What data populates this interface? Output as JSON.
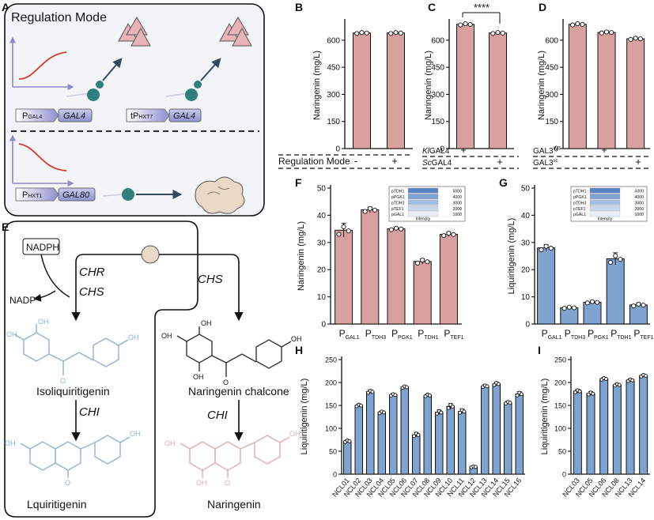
{
  "panels": {
    "A": {
      "letter": "A",
      "title": "Regulation Mode",
      "promoter1_main": "P",
      "promoter1_sub": "GAL4",
      "gene1": "GAL4",
      "promoter2_main": "tP",
      "promoter2_sub": "HXT7",
      "gene2": "GAL4",
      "promoter3_main": "P",
      "promoter3_sub": "HXT1",
      "gene3": "GAL80"
    },
    "E": {
      "letter": "E",
      "cofactor": "NADPH",
      "cofactor_out": "NADP⁺",
      "enzyme_chr": "CHR",
      "enzyme_chs_left": "CHS",
      "enzyme_chs_right": "CHS",
      "enzyme_chi_left": "CHI",
      "enzyme_chi_right": "CHI",
      "intermediate_left": "Isoliquiritigenin",
      "intermediate_right": "Naringenin chalcone",
      "product_left": "Lquiritigenin",
      "product_right": "Naringenin",
      "oh": "OH",
      "o": "O"
    },
    "B": {
      "letter": "B",
      "condition_label": "Regulation Mode",
      "marks": [
        "-",
        "+"
      ]
    },
    "C": {
      "letter": "C",
      "significance": "****",
      "row1_prefix": "Kl",
      "row1_suffix": "GAL4",
      "row2_prefix": "Sc",
      "row2_suffix": "GAL4",
      "row1_marks": [
        "+",
        ""
      ],
      "row2_marks": [
        "",
        "+"
      ]
    },
    "D": {
      "letter": "D",
      "row1_main": "GAL3",
      "row1_sup": "WT",
      "row2_main": "GAL3",
      "row2_sup": "sc",
      "row1_marks": [
        "",
        "+",
        ""
      ],
      "row2_marks": [
        "",
        "",
        "+"
      ]
    },
    "F": {
      "letter": "F",
      "inset_rows": [
        "pTDH1",
        "pPGK1",
        "pTDH3",
        "pTEF1",
        "pGAL1"
      ],
      "inset_values": [
        "5000",
        "4000",
        "3000",
        "2000",
        "1000"
      ],
      "inset_label": "Intensity"
    },
    "G": {
      "letter": "G",
      "inset_rows": [
        "pTDH1",
        "pPGK1",
        "pTDH3",
        "pTEF1",
        "pGAL1"
      ],
      "inset_values": [
        "5000",
        "4000",
        "3000",
        "2000",
        "1000"
      ],
      "inset_label": "Intensity"
    },
    "H": {
      "letter": "H"
    },
    "I": {
      "letter": "I"
    }
  },
  "colors": {
    "pink": "#d9a0a0",
    "blue": "#7fa3cf",
    "dot": "#ffffff",
    "box_bg": "#f2f4f8",
    "teal": "#2f7f7f",
    "red_curve": "#d63a2a",
    "axis_purple": "#8c8cc9"
  },
  "chart_data": [
    {
      "id": "B",
      "type": "bar",
      "ylabel": "Naringenin (mg/L)",
      "yticks": [
        0,
        150,
        300,
        450,
        600
      ],
      "ylim": [
        0,
        700
      ],
      "categories": [
        "-",
        "+"
      ],
      "values": [
        640,
        640
      ],
      "errors": [
        5,
        5
      ],
      "color": "pink"
    },
    {
      "id": "C",
      "type": "bar",
      "ylabel": "Naringenin (mg/L)",
      "yticks": [
        0,
        150,
        300,
        450,
        600
      ],
      "ylim": [
        0,
        700
      ],
      "categories": [
        "KlGAL4",
        "ScGAL4"
      ],
      "values": [
        688,
        640
      ],
      "errors": [
        6,
        5
      ],
      "color": "pink"
    },
    {
      "id": "D",
      "type": "bar",
      "ylabel": "Naringenin (mg/L)",
      "yticks": [
        0,
        150,
        300,
        450,
        600
      ],
      "ylim": [
        0,
        700
      ],
      "categories": [
        "-",
        "GAL3WT",
        "GAL3sc"
      ],
      "values": [
        688,
        643,
        608
      ],
      "errors": [
        6,
        5,
        6
      ],
      "color": "pink"
    },
    {
      "id": "F",
      "type": "bar",
      "ylabel": "Naringenin (mg/L)",
      "yticks": [
        0,
        10,
        20,
        30,
        40,
        50
      ],
      "ylim": [
        0,
        50
      ],
      "categories": [
        [
          "P",
          "GAL1"
        ],
        [
          "P",
          "TDH3"
        ],
        [
          "P",
          "PGK1"
        ],
        [
          "P",
          "TDH1"
        ],
        [
          "P",
          "TEF1"
        ]
      ],
      "values": [
        34.5,
        42,
        35,
        23,
        33
      ],
      "errors": [
        2.5,
        1,
        0.5,
        1,
        0.8
      ],
      "color": "pink"
    },
    {
      "id": "G",
      "type": "bar",
      "ylabel": "Liquiritigenin (mg/L)",
      "yticks": [
        0,
        10,
        20,
        30,
        40,
        50
      ],
      "ylim": [
        0,
        50
      ],
      "categories": [
        [
          "P",
          "GAL1"
        ],
        [
          "P",
          "TDH3"
        ],
        [
          "P",
          "PGK1"
        ],
        [
          "P",
          "TDH1"
        ],
        [
          "P",
          "TEF1"
        ]
      ],
      "values": [
        28,
        6,
        8,
        24,
        7
      ],
      "errors": [
        1.2,
        0.4,
        0.4,
        2.2,
        0.6
      ],
      "color": "blue"
    },
    {
      "id": "H",
      "type": "bar",
      "ylabel": "Liquiritigenin (mg/L)",
      "yticks": [
        0,
        50,
        100,
        150,
        200,
        250
      ],
      "ylim": [
        0,
        250
      ],
      "categories": [
        "NCL01",
        "NCL02",
        "NCL03",
        "NCL04",
        "NCL05",
        "NCL06",
        "NCL07",
        "NCL08",
        "NCL09",
        "NCL10",
        "NCL11",
        "NCL12",
        "NCL13",
        "NCL14",
        "NCL15",
        "NCL16"
      ],
      "values": [
        72,
        150,
        180,
        135,
        173,
        190,
        86,
        172,
        135,
        148,
        137,
        16,
        192,
        197,
        156,
        175
      ],
      "errors": [
        3,
        3,
        4,
        3,
        3,
        3,
        5,
        3,
        5,
        6,
        5,
        2,
        3,
        4,
        3,
        5
      ],
      "color": "blue"
    },
    {
      "id": "I",
      "type": "bar",
      "ylabel": "Liquiritigenin (mg/L)",
      "yticks": [
        0,
        50,
        100,
        150,
        200,
        250
      ],
      "ylim": [
        0,
        250
      ],
      "categories": [
        "NCL03",
        "NCL05",
        "NCL06",
        "NCL08",
        "NCL13",
        "NCL14"
      ],
      "values": [
        181,
        176,
        208,
        195,
        205,
        215
      ],
      "errors": [
        4,
        4,
        3,
        3,
        3,
        3
      ],
      "color": "blue"
    }
  ]
}
